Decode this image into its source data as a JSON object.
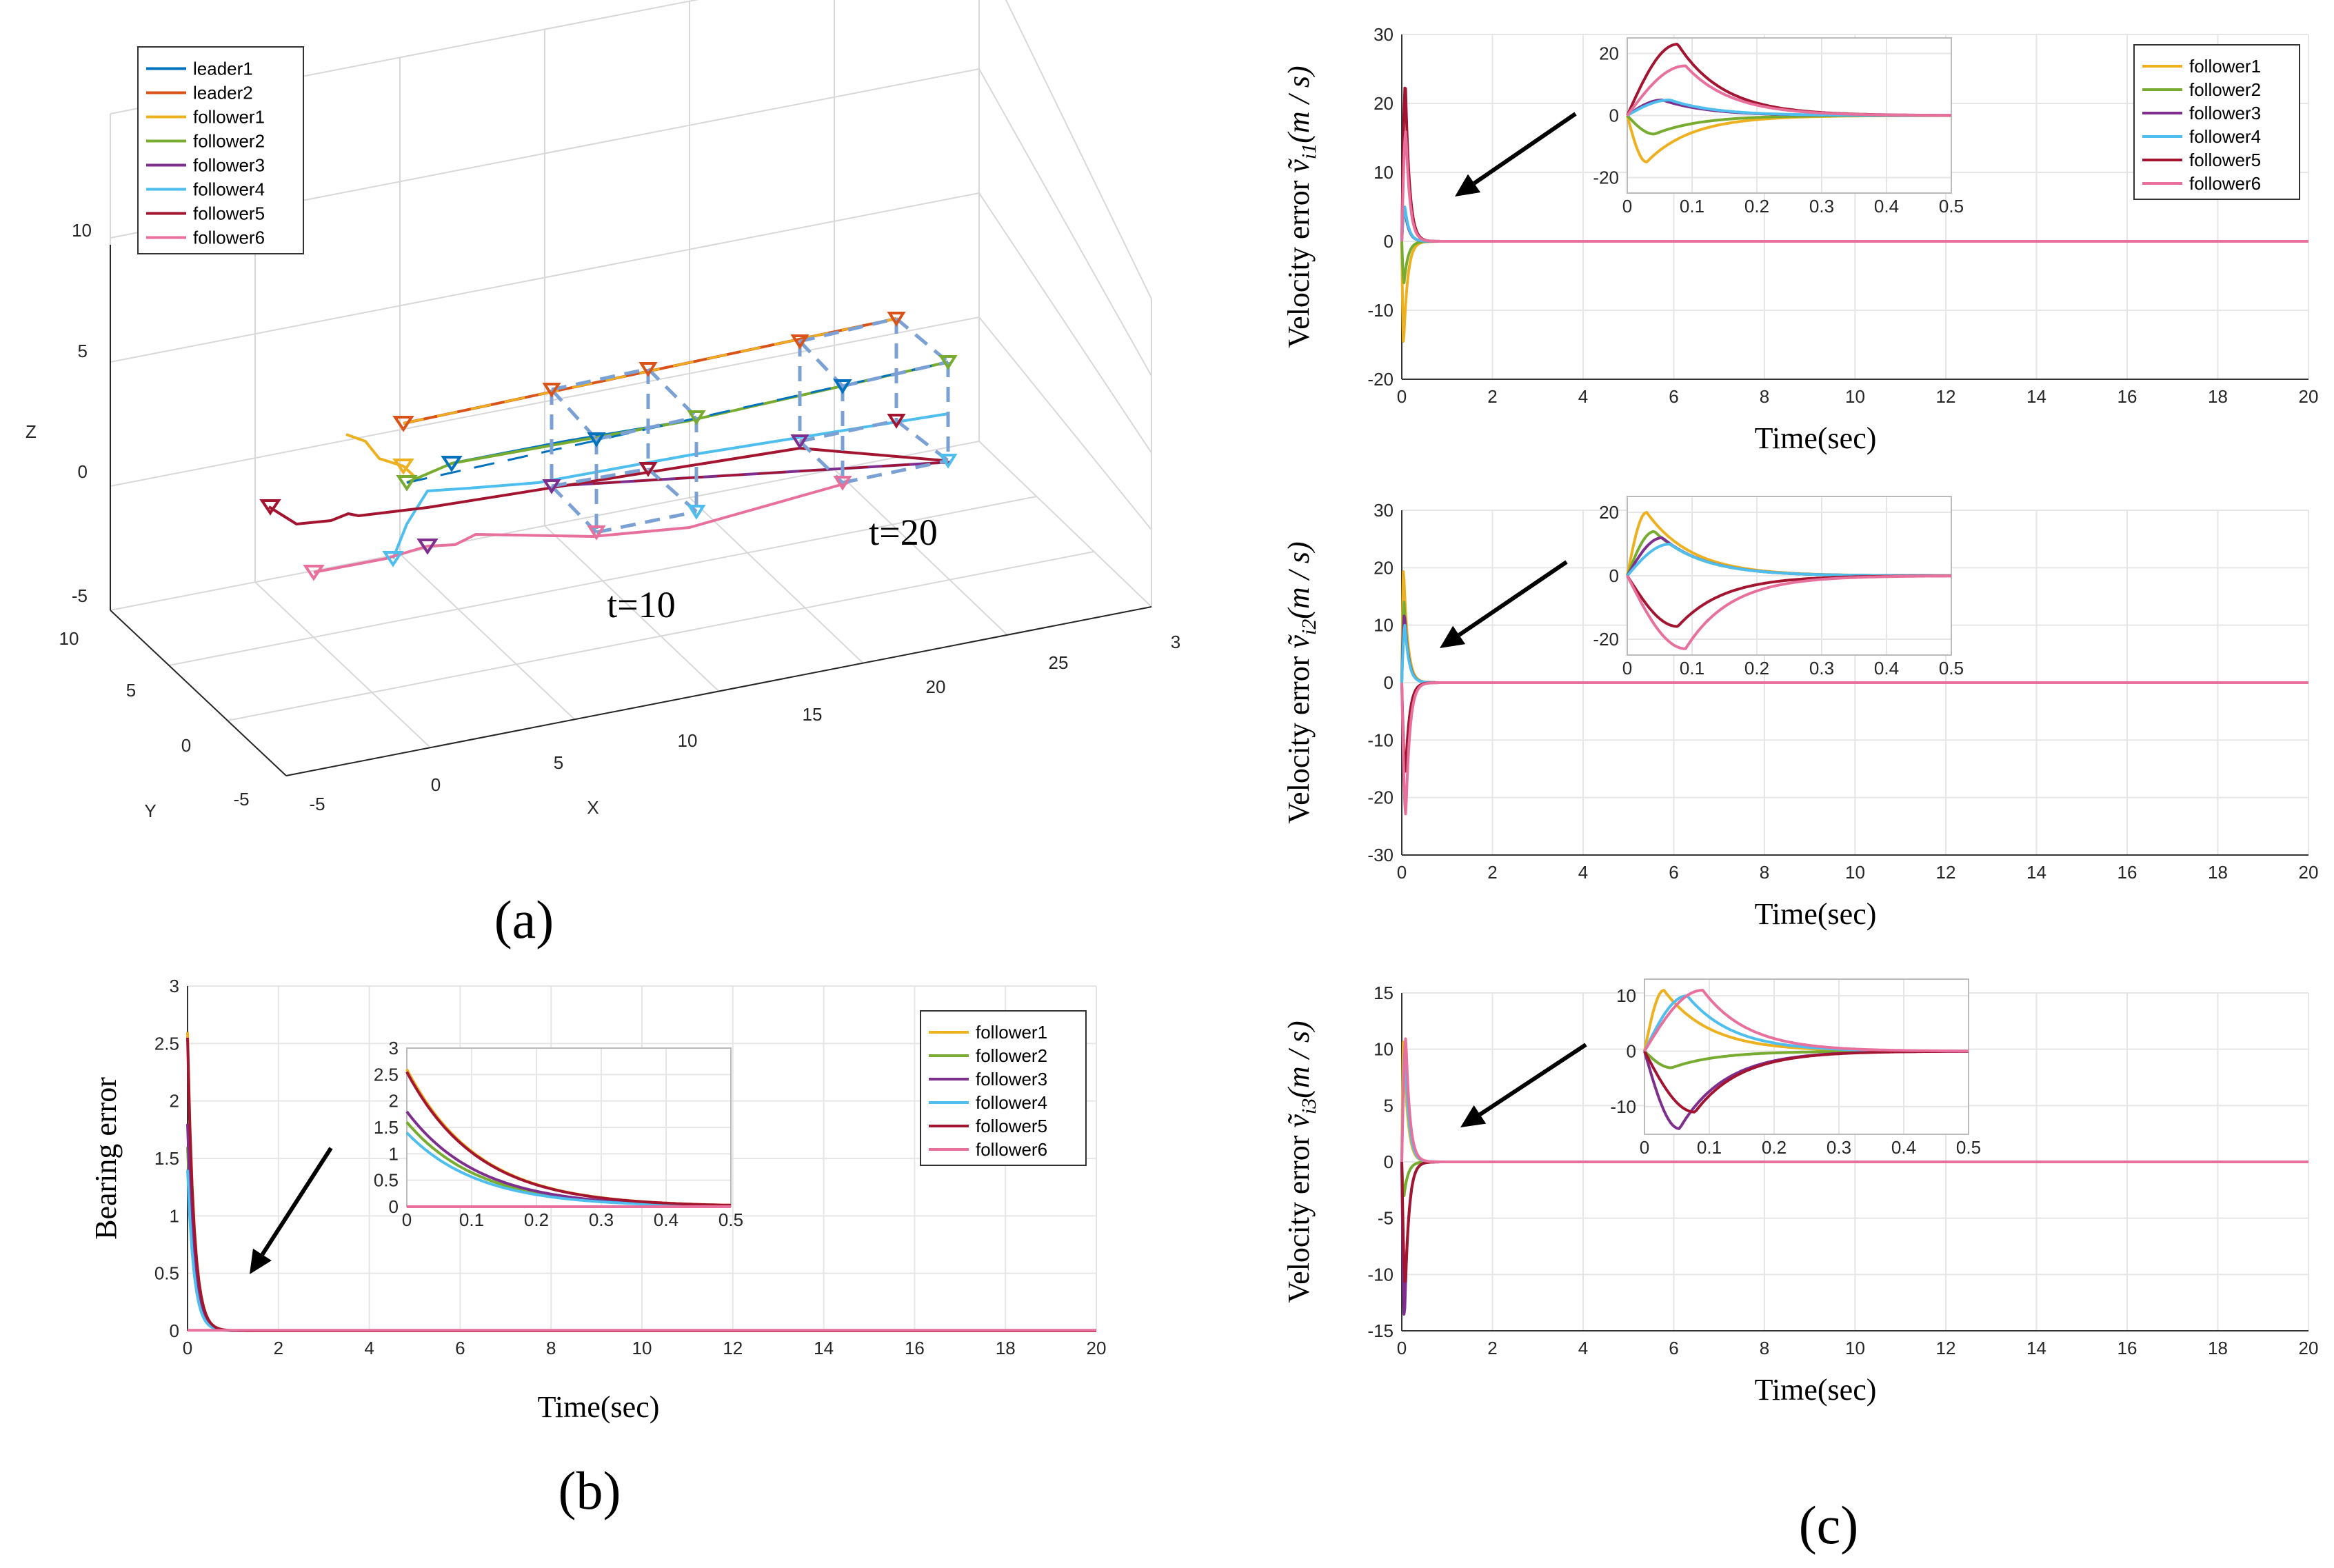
{
  "colors": {
    "leader1": "#0072BD",
    "leader2": "#D95319",
    "follower1": "#EDB120",
    "follower2": "#77AC30",
    "follower3": "#7E2F8E",
    "follower4": "#4DBEEE",
    "follower5": "#A2142F",
    "follower6": "#E8709C",
    "frame": "#7AA0D4"
  },
  "panels": {
    "a": "(a)",
    "b": "(b)",
    "c": "(c)"
  },
  "chart_data": [
    {
      "id": "a",
      "type": "line3d",
      "title": "",
      "xlabel": "X",
      "ylabel": "Y",
      "zlabel": "Z",
      "xticks": [
        "-5",
        "0",
        "5",
        "10",
        "15",
        "20",
        "25",
        "3"
      ],
      "yticks": [
        "10",
        "5",
        "0",
        "-5"
      ],
      "zticks": [
        "10",
        "5",
        "0",
        "-5"
      ],
      "legend": [
        "leader1",
        "leader2",
        "follower1",
        "follower2",
        "follower3",
        "follower4",
        "follower5",
        "follower6"
      ],
      "annotations": [
        "t=10",
        "t=20"
      ]
    },
    {
      "id": "b",
      "type": "line",
      "xlabel": "Time(sec)",
      "ylabel": "Bearing error",
      "xlim": [
        0,
        20
      ],
      "ylim": [
        0,
        3
      ],
      "xticks": [
        "0",
        "2",
        "4",
        "6",
        "8",
        "10",
        "12",
        "14",
        "16",
        "18",
        "20"
      ],
      "yticks": [
        "0",
        "0.5",
        "1",
        "1.5",
        "2",
        "2.5",
        "3"
      ],
      "legend": [
        "follower1",
        "follower2",
        "follower3",
        "follower4",
        "follower5",
        "follower6"
      ],
      "series": [
        {
          "name": "follower1",
          "initial": 2.6
        },
        {
          "name": "follower2",
          "initial": 1.6
        },
        {
          "name": "follower3",
          "initial": 1.8
        },
        {
          "name": "follower4",
          "initial": 1.4
        },
        {
          "name": "follower5",
          "initial": 2.55
        },
        {
          "name": "follower6",
          "initial": 0.0
        }
      ],
      "inset": {
        "xlim": [
          0,
          0.5
        ],
        "ylim": [
          0,
          3
        ],
        "xticks": [
          "0",
          "0.1",
          "0.2",
          "0.3",
          "0.4",
          "0.5"
        ],
        "yticks": [
          "0",
          "0.5",
          "1",
          "1.5",
          "2",
          "2.5",
          "3"
        ]
      }
    },
    {
      "id": "c1",
      "type": "line",
      "xlabel": "Time(sec)",
      "ylabel_text": "Velocity error",
      "ylabel_sym": "ṽ",
      "ylabel_sub": "i1",
      "ylabel_unit": "(m / s)",
      "xlim": [
        0,
        20
      ],
      "ylim": [
        -20,
        30
      ],
      "xticks": [
        "0",
        "2",
        "4",
        "6",
        "8",
        "10",
        "12",
        "14",
        "16",
        "18",
        "20"
      ],
      "yticks": [
        "-20",
        "-10",
        "0",
        "10",
        "20",
        "30"
      ],
      "legend": [
        "follower1",
        "follower2",
        "follower3",
        "follower4",
        "follower5",
        "follower6"
      ],
      "series": [
        {
          "name": "follower1",
          "peak": -15
        },
        {
          "name": "follower2",
          "peak": -6
        },
        {
          "name": "follower3",
          "peak": 5
        },
        {
          "name": "follower4",
          "peak": 5
        },
        {
          "name": "follower5",
          "peak": 23
        },
        {
          "name": "follower6",
          "peak": 16
        }
      ],
      "inset": {
        "xlim": [
          0,
          0.5
        ],
        "ylim": [
          -25,
          25
        ],
        "xticks": [
          "0",
          "0.1",
          "0.2",
          "0.3",
          "0.4",
          "0.5"
        ],
        "yticks": [
          "20",
          "0",
          "-20"
        ]
      }
    },
    {
      "id": "c2",
      "type": "line",
      "xlabel": "Time(sec)",
      "ylabel_text": "Velocity error",
      "ylabel_sym": "ṽ",
      "ylabel_sub": "i2",
      "ylabel_unit": "(m / s)",
      "xlim": [
        0,
        20
      ],
      "ylim": [
        -30,
        30
      ],
      "xticks": [
        "0",
        "2",
        "4",
        "6",
        "8",
        "10",
        "12",
        "14",
        "16",
        "18",
        "20"
      ],
      "yticks": [
        "-30",
        "-20",
        "-10",
        "0",
        "10",
        "20",
        "30"
      ],
      "series": [
        {
          "name": "follower1",
          "peak": 20
        },
        {
          "name": "follower2",
          "peak": 14
        },
        {
          "name": "follower3",
          "peak": 12
        },
        {
          "name": "follower4",
          "peak": 10
        },
        {
          "name": "follower5",
          "peak": -16
        },
        {
          "name": "follower6",
          "peak": -23
        }
      ],
      "inset": {
        "xlim": [
          0,
          0.5
        ],
        "ylim": [
          -25,
          25
        ],
        "xticks": [
          "0",
          "0.1",
          "0.2",
          "0.3",
          "0.4",
          "0.5"
        ],
        "yticks": [
          "20",
          "0",
          "-20"
        ]
      }
    },
    {
      "id": "c3",
      "type": "line",
      "xlabel": "Time(sec)",
      "ylabel_text": "Velocity error",
      "ylabel_sym": "ṽ",
      "ylabel_sub": "i3",
      "ylabel_unit": "(m / s)",
      "xlim": [
        0,
        20
      ],
      "ylim": [
        -15,
        15
      ],
      "xticks": [
        "0",
        "2",
        "4",
        "6",
        "8",
        "10",
        "12",
        "14",
        "16",
        "18",
        "20"
      ],
      "yticks": [
        "-15",
        "-10",
        "-5",
        "0",
        "5",
        "10",
        "15"
      ],
      "series": [
        {
          "name": "follower1",
          "peak": 11
        },
        {
          "name": "follower2",
          "peak": -3
        },
        {
          "name": "follower3",
          "peak": -14
        },
        {
          "name": "follower4",
          "peak": 10
        },
        {
          "name": "follower5",
          "peak": -11
        },
        {
          "name": "follower6",
          "peak": 11
        }
      ],
      "inset": {
        "xlim": [
          0,
          0.5
        ],
        "ylim": [
          -15,
          13
        ],
        "xticks": [
          "0",
          "0.1",
          "0.2",
          "0.3",
          "0.4",
          "0.5"
        ],
        "yticks": [
          "10",
          "0",
          "-10"
        ]
      }
    }
  ]
}
